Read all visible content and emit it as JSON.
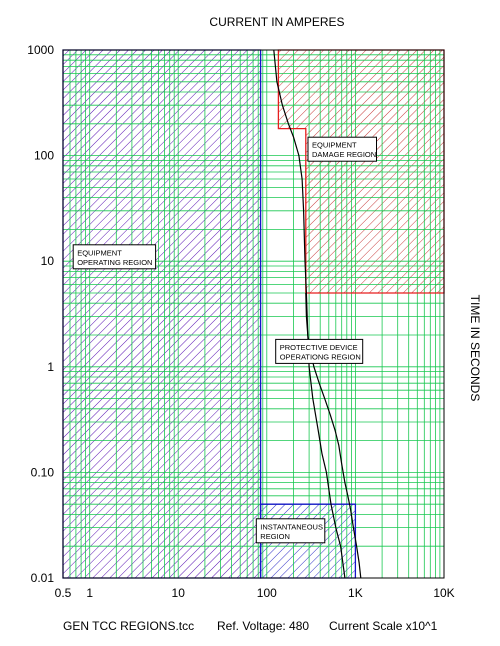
{
  "chart_data": {
    "type": "line",
    "title": "CURRENT IN AMPERES",
    "ylabel": "TIME IN SECONDS",
    "xscale": "log",
    "yscale": "log",
    "xlim": [
      0.5,
      10000
    ],
    "ylim": [
      0.01,
      1000
    ],
    "grid": true,
    "x_ticks": [
      {
        "value": 0.5,
        "label": "0.5"
      },
      {
        "value": 1,
        "label": "1"
      },
      {
        "value": 10,
        "label": "10"
      },
      {
        "value": 100,
        "label": "100"
      },
      {
        "value": 1000,
        "label": "1K"
      },
      {
        "value": 10000,
        "label": "10K"
      }
    ],
    "y_ticks": [
      {
        "value": 1000,
        "label": "1000"
      },
      {
        "value": 100,
        "label": "100"
      },
      {
        "value": 10,
        "label": "10"
      },
      {
        "value": 1,
        "label": "1"
      },
      {
        "value": 0.1,
        "label": "0.10"
      },
      {
        "value": 0.01,
        "label": "0.01"
      }
    ],
    "regions": [
      {
        "id": "equipment-operating-region",
        "label_lines": [
          "EQUIPMENT",
          "OPERATING REGION"
        ],
        "color": "#1414c8",
        "hatch": "#5a14b4",
        "polygon": [
          [
            0.5,
            1000
          ],
          [
            85,
            1000
          ],
          [
            85,
            0.01
          ],
          [
            0.5,
            0.01
          ]
        ],
        "label_at": [
          1.9,
          11
        ]
      },
      {
        "id": "equipment-damage-region",
        "label_lines": [
          "EQUIPMENT",
          "DAMAGE REGION"
        ],
        "color": "#e61e1e",
        "hatch": "#c83c3c",
        "polygon": [
          [
            135,
            1000
          ],
          [
            10000,
            1000
          ],
          [
            10000,
            5
          ],
          [
            275,
            5
          ],
          [
            275,
            180
          ],
          [
            135,
            180
          ]
        ],
        "label_at": [
          710,
          115
        ]
      },
      {
        "id": "instantaneous-region",
        "label_lines": [
          "INSTANTANEOUS",
          "REGION"
        ],
        "color": "#1414c8",
        "hatch": "#3232c8",
        "polygon": [
          [
            85,
            0.05
          ],
          [
            1000,
            0.05
          ],
          [
            1000,
            0.01
          ],
          [
            85,
            0.01
          ]
        ],
        "label_at": [
          185,
          0.028
        ]
      },
      {
        "id": "protective-device-operating-region",
        "label_lines": [
          "PROTECTIVE DEVICE",
          "OPERATIONG REGION"
        ],
        "color": "#000000",
        "hatch": "none",
        "polygon": [],
        "label_at": [
          390,
          1.4
        ]
      }
    ],
    "series": [
      {
        "id": "protective-device-left-curve",
        "color": "#000000",
        "x": [
          120,
          130,
          150,
          175,
          200,
          230,
          250,
          260,
          270,
          280,
          290,
          300,
          330,
          380,
          420,
          470,
          530,
          600,
          680,
          760
        ],
        "y": [
          1000,
          500,
          300,
          200,
          150,
          100,
          60,
          30,
          10,
          5,
          2,
          1,
          0.5,
          0.25,
          0.15,
          0.1,
          0.05,
          0.03,
          0.02,
          0.01
        ]
      },
      {
        "id": "protective-device-right-curve",
        "color": "#000000",
        "x": [
          275,
          280,
          290,
          310,
          340,
          390,
          450,
          520,
          590,
          650,
          700,
          760,
          820,
          880,
          950,
          1030,
          1100,
          1150
        ],
        "y": [
          5,
          3,
          2,
          1.4,
          1,
          0.7,
          0.5,
          0.35,
          0.25,
          0.18,
          0.12,
          0.08,
          0.06,
          0.045,
          0.03,
          0.02,
          0.014,
          0.01
        ]
      }
    ],
    "footer": {
      "file": "GEN TCC REGIONS.tcc",
      "voltage": "Ref. Voltage: 480",
      "scale": "Current Scale x10^1"
    }
  }
}
